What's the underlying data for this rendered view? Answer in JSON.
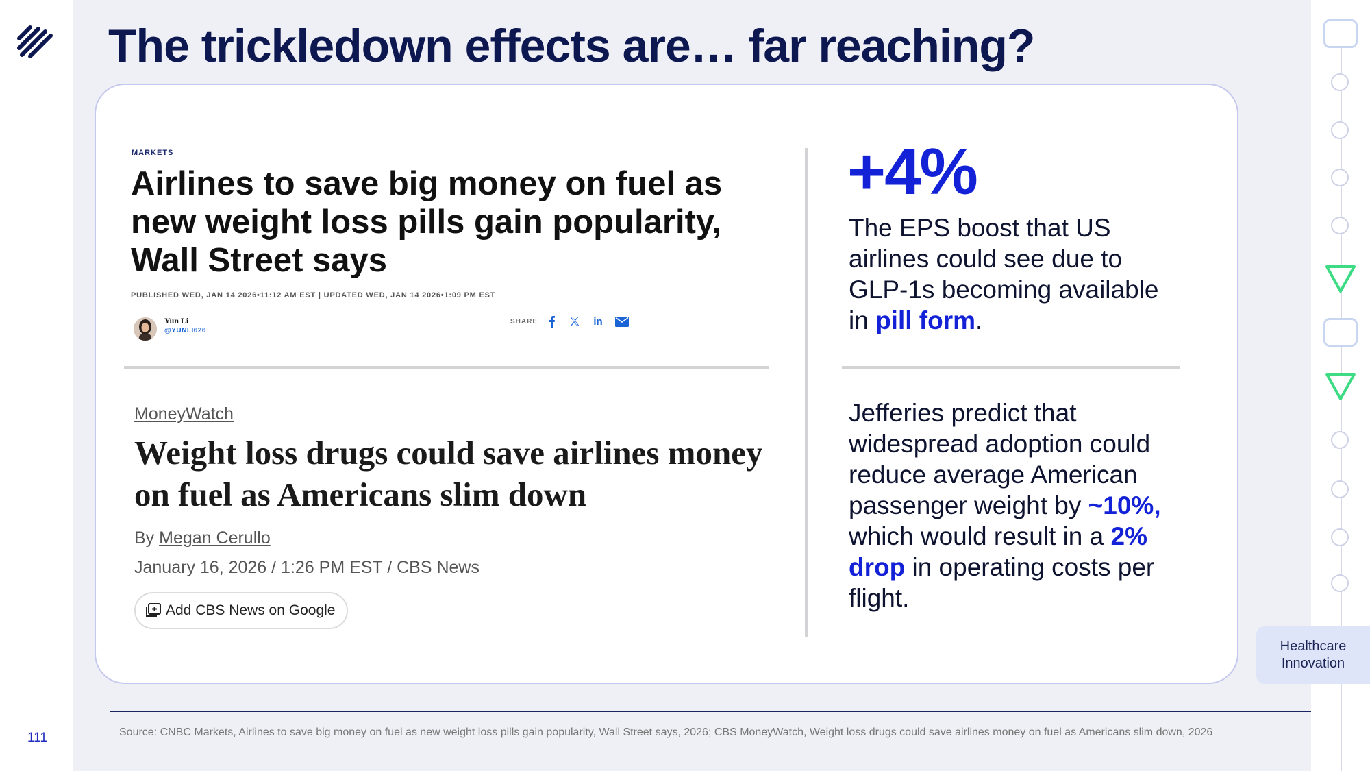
{
  "slide": {
    "title": "The trickledown effects are… far reaching?",
    "page_number": "111",
    "section_tab": {
      "line1": "Healthcare",
      "line2": "Innovation"
    }
  },
  "cnbc": {
    "kicker": "MARKETS",
    "headline": "Airlines to save big money on fuel as new weight loss pills gain popularity, Wall Street says",
    "meta": "PUBLISHED WED, JAN 14 2026•11:12 AM EST | UPDATED WED, JAN 14 2026•1:09 PM EST",
    "author_name": "Yun Li",
    "author_handle": "@YUNLI626",
    "share_label": "SHARE",
    "share_icons": [
      "facebook-icon",
      "x-icon",
      "linkedin-icon",
      "email-icon"
    ]
  },
  "cbs": {
    "section": "MoneyWatch",
    "headline": "Weight loss drugs could save airlines money on fuel as Americans slim down",
    "by_prefix": "By",
    "author": "Megan Cerullo",
    "date_line": "January 16, 2026 / 1:26 PM EST / CBS News",
    "google_button": "Add CBS News on Google"
  },
  "stat1": {
    "big": "+4%",
    "text_before": "The EPS boost that US airlines could see due to GLP-1s becoming available in ",
    "highlight": "pill form",
    "text_after": "."
  },
  "stat2": {
    "part1": "Jefferies predict that widespread adoption could reduce average American passenger weight by ",
    "hl1": "~10%,",
    "part2": " which would result in a ",
    "hl2": "2% drop",
    "part3": " in operating costs per flight."
  },
  "footer": {
    "source": "Source: CNBC Markets, Airlines to save big money on fuel as new weight loss pills gain popularity, Wall Street says, 2026; CBS MoneyWatch, Weight loss drugs could save airlines money on fuel as Americans slim down, 2026"
  },
  "colors": {
    "navy": "#0d1750",
    "accent_blue": "#1322d6",
    "card_border": "#c5c8ee",
    "background": "#eff0f5",
    "green_triangle": "#3ddc84",
    "tab_bg": "#dfe5f9"
  }
}
